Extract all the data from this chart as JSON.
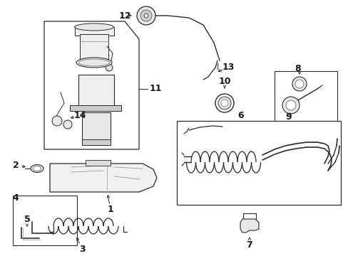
{
  "bg_color": "#ffffff",
  "line_color": "#2a2a2a",
  "label_color": "#1a1a1a",
  "font_size": 9,
  "figsize": [
    4.89,
    3.6
  ],
  "dpi": 100
}
